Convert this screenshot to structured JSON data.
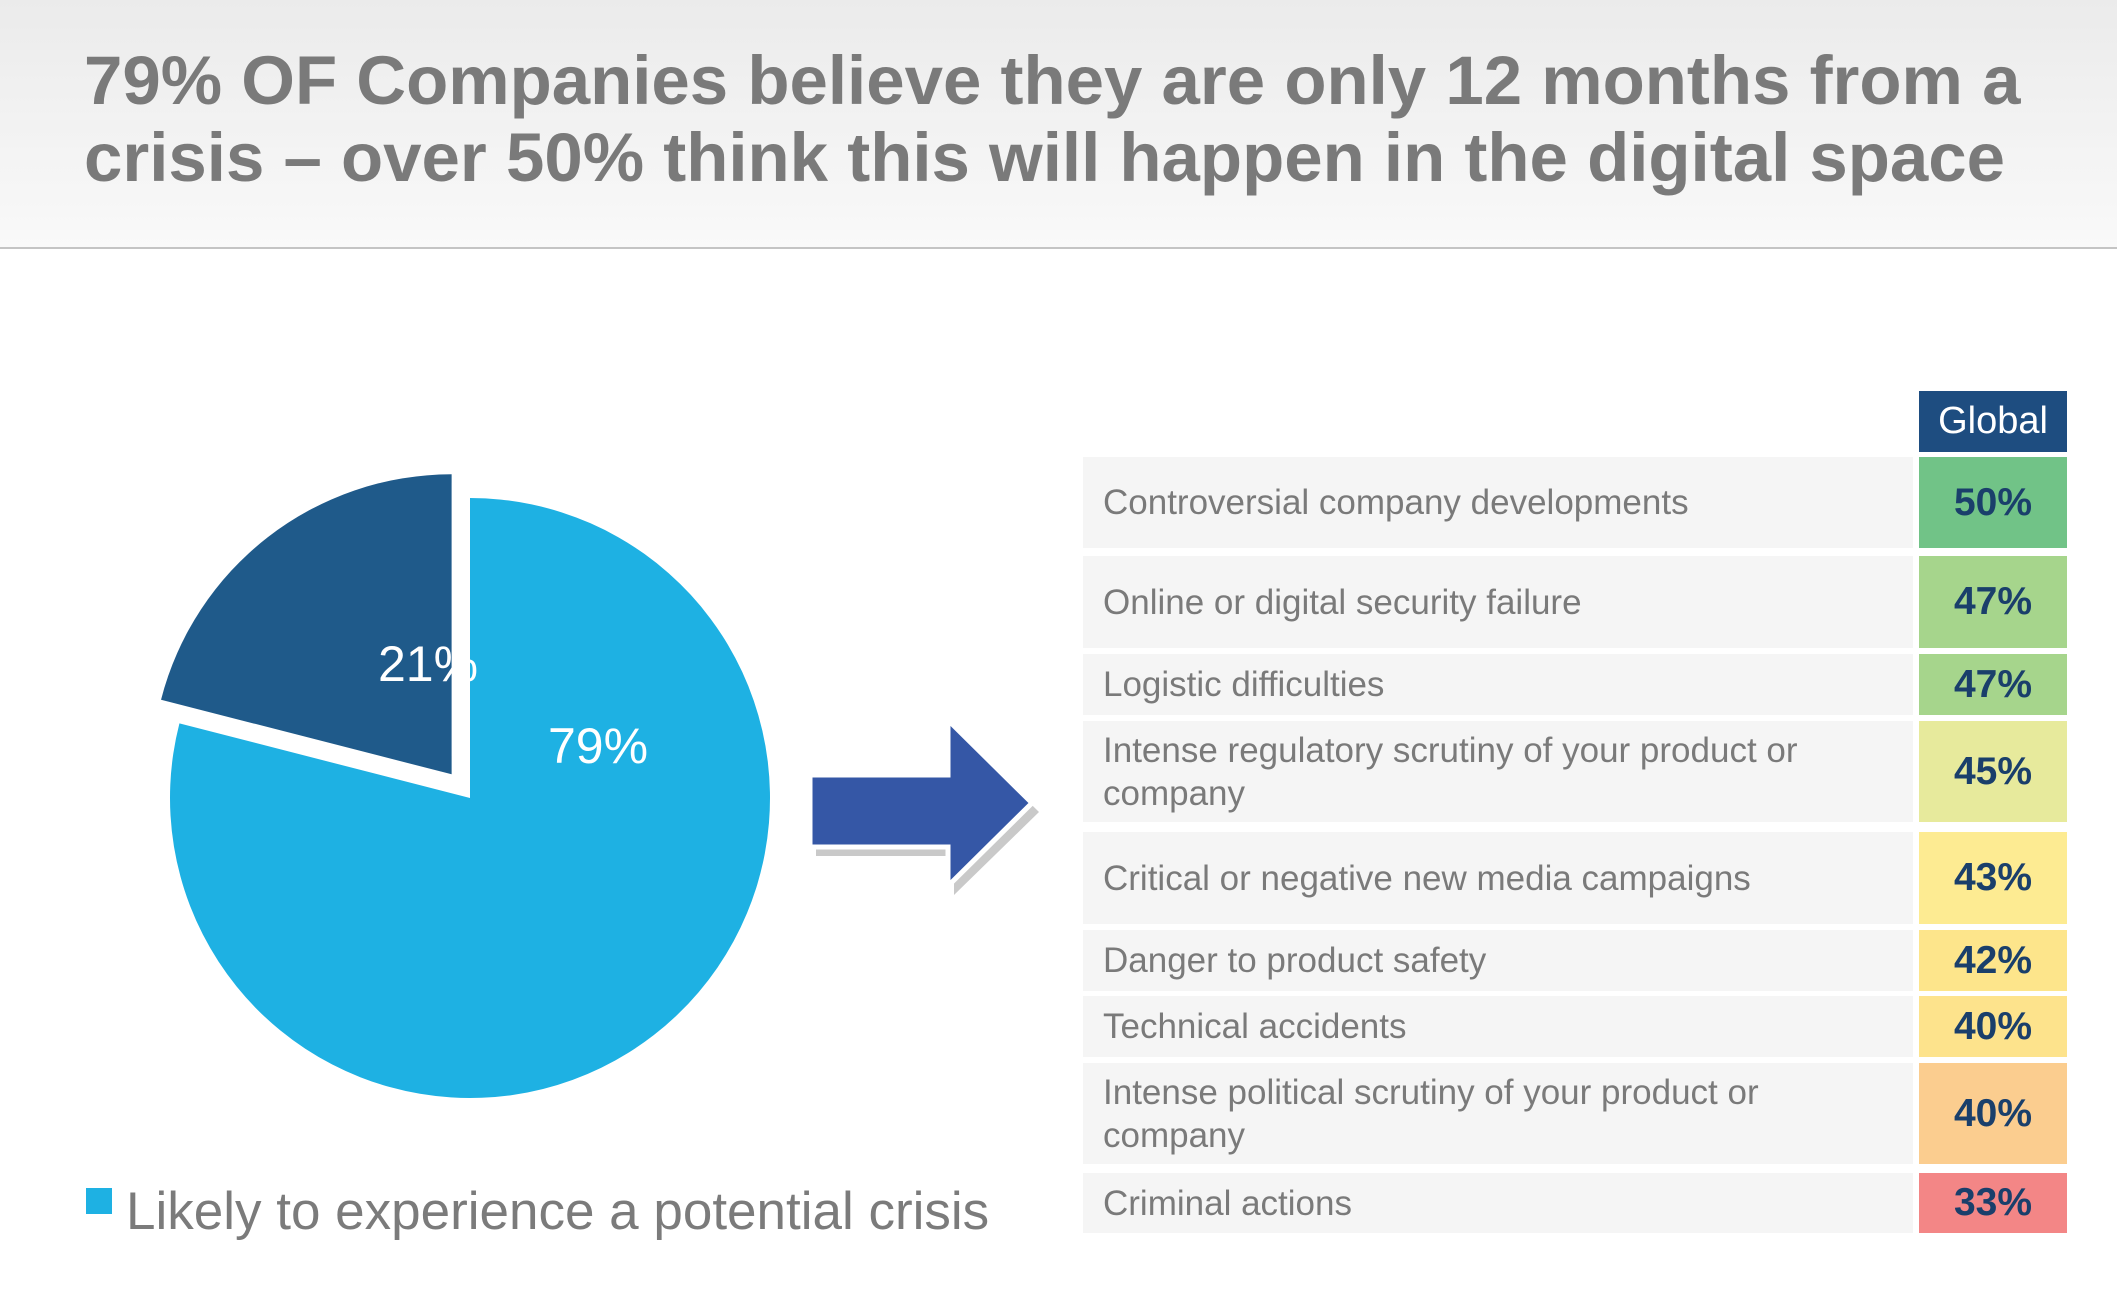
{
  "title": "79% OF Companies believe they are only 12 months from a crisis – over 50% think this will happen in the digital space",
  "chart_data": [
    {
      "type": "pie",
      "slices": [
        {
          "label": "Likely to experience a potential crisis",
          "value": 79,
          "display": "79%",
          "color": "#1eb1e3"
        },
        {
          "label": "",
          "value": 21,
          "display": "21%",
          "color": "#1f5a8a"
        }
      ],
      "legend": {
        "placement": "bottom-left",
        "entries": [
          "Likely to experience a potential crisis"
        ]
      }
    },
    {
      "type": "table",
      "column_header": "Global",
      "rows": [
        {
          "label": "Controversial company developments",
          "value": "50%",
          "pct": 50,
          "color": "#71c387"
        },
        {
          "label": "Online or digital security failure",
          "value": "47%",
          "pct": 47,
          "color": "#a6d58c"
        },
        {
          "label": "Logistic difficulties",
          "value": "47%",
          "pct": 47,
          "color": "#a6d58c"
        },
        {
          "label": "Intense regulatory scrutiny of your product or company",
          "value": "45%",
          "pct": 45,
          "color": "#e7ea9c"
        },
        {
          "label": "Critical or negative new media campaigns",
          "value": "43%",
          "pct": 43,
          "color": "#fdeb92"
        },
        {
          "label": "Danger to product safety",
          "value": "42%",
          "pct": 42,
          "color": "#fde58b"
        },
        {
          "label": "Technical accidents",
          "value": "40%",
          "pct": 40,
          "color": "#fde38c"
        },
        {
          "label": "Intense political scrutiny of your product or company",
          "value": "40%",
          "pct": 40,
          "color": "#fbcd8f"
        },
        {
          "label": "Criminal actions",
          "value": "33%",
          "pct": 33,
          "color": "#f38686"
        }
      ]
    }
  ],
  "arrow": {
    "icon": "right-arrow-icon",
    "color": "#3557a6"
  }
}
